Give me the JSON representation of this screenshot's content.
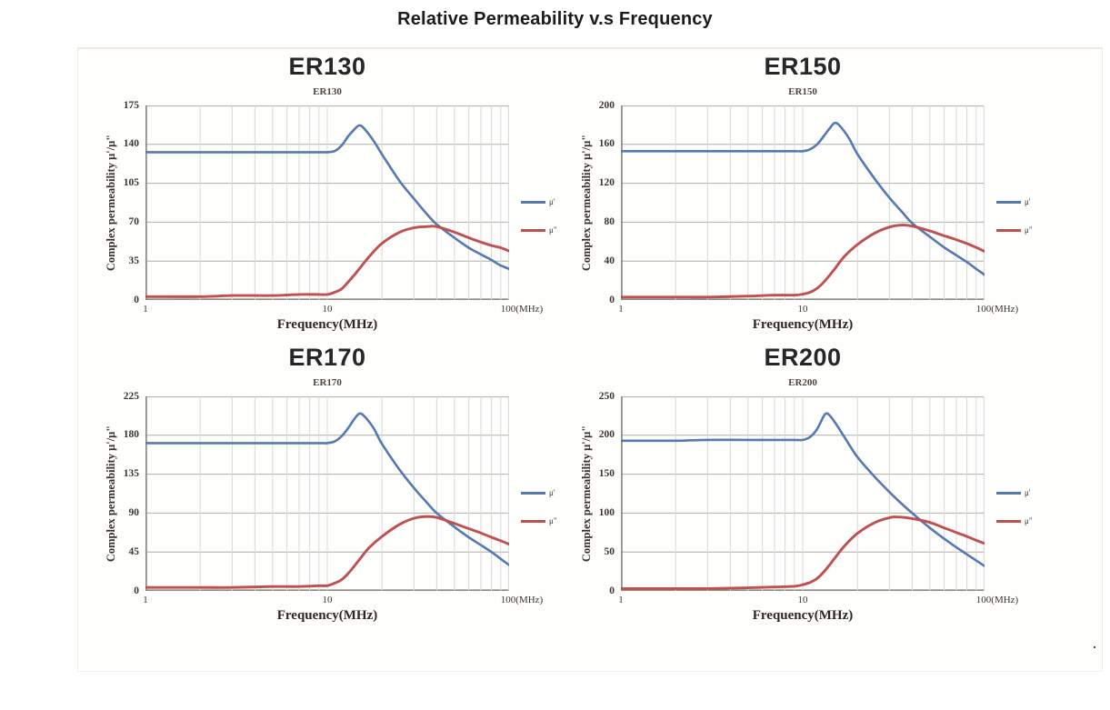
{
  "page": {
    "title": "Relative Permeability v.s Frequency",
    "trailing_mark": "."
  },
  "axis": {
    "xlabel": "Frequency(MHz)",
    "ylabel": "Complex permeability  μ'/μ\"",
    "xticks": [
      "1",
      "10",
      "100(MHz)"
    ],
    "xscale": "log",
    "xrange": [
      1,
      100
    ],
    "grid": true
  },
  "legend": {
    "position": "right",
    "mu_prime": "μ'",
    "mu_double_prime": "μ\""
  },
  "colors": {
    "mu_prime": "#5579b2",
    "mu_double_prime": "#c0504d",
    "grid_h": "#b4ada4",
    "grid_v": "#d9d9dd",
    "axis": "#8e8780"
  },
  "chart_data": [
    {
      "id": "ER130",
      "type": "line",
      "title": "ER130",
      "subtitle": "ER130",
      "xlabel": "Frequency(MHz)",
      "ylabel": "Complex permeability  μ'/μ\"",
      "ylim": [
        0,
        175
      ],
      "yticks": [
        0,
        35,
        70,
        105,
        140,
        175
      ],
      "series": [
        {
          "name": "μ'",
          "color_key": "mu_prime",
          "points": [
            [
              1,
              133
            ],
            [
              2,
              133
            ],
            [
              3,
              133
            ],
            [
              5,
              133
            ],
            [
              7,
              133
            ],
            [
              9,
              133
            ],
            [
              10,
              133
            ],
            [
              11,
              134
            ],
            [
              12,
              139
            ],
            [
              13,
              147
            ],
            [
              14,
              153
            ],
            [
              15,
              157
            ],
            [
              16,
              154
            ],
            [
              18,
              143
            ],
            [
              20,
              131
            ],
            [
              25,
              107
            ],
            [
              30,
              91
            ],
            [
              35,
              78
            ],
            [
              40,
              68
            ],
            [
              50,
              56
            ],
            [
              60,
              47
            ],
            [
              70,
              41
            ],
            [
              80,
              36
            ],
            [
              90,
              31
            ],
            [
              100,
              28
            ]
          ]
        },
        {
          "name": "μ\"",
          "color_key": "mu_double_prime",
          "points": [
            [
              1,
              3
            ],
            [
              2,
              3
            ],
            [
              3,
              4
            ],
            [
              5,
              4
            ],
            [
              7,
              5
            ],
            [
              9,
              5
            ],
            [
              10,
              5
            ],
            [
              11,
              7
            ],
            [
              12,
              10
            ],
            [
              13,
              16
            ],
            [
              14,
              22
            ],
            [
              15,
              28
            ],
            [
              17,
              39
            ],
            [
              20,
              51
            ],
            [
              25,
              61
            ],
            [
              30,
              65
            ],
            [
              35,
              66
            ],
            [
              40,
              66
            ],
            [
              50,
              61
            ],
            [
              60,
              56
            ],
            [
              70,
              52
            ],
            [
              80,
              49
            ],
            [
              90,
              47
            ],
            [
              100,
              44
            ]
          ]
        }
      ]
    },
    {
      "id": "ER150",
      "type": "line",
      "title": "ER150",
      "subtitle": "ER150",
      "xlabel": "Frequency(MHz)",
      "ylabel": "Complex permeability  μ'/μ\"",
      "ylim": [
        0,
        200
      ],
      "yticks": [
        0,
        40,
        80,
        120,
        160,
        200
      ],
      "series": [
        {
          "name": "μ'",
          "color_key": "mu_prime",
          "points": [
            [
              1,
              153
            ],
            [
              2,
              153
            ],
            [
              3,
              153
            ],
            [
              5,
              153
            ],
            [
              7,
              153
            ],
            [
              9,
              153
            ],
            [
              10,
              153
            ],
            [
              11,
              155
            ],
            [
              12,
              160
            ],
            [
              13,
              168
            ],
            [
              14,
              176
            ],
            [
              15,
              182
            ],
            [
              16,
              179
            ],
            [
              18,
              166
            ],
            [
              20,
              150
            ],
            [
              25,
              124
            ],
            [
              30,
              105
            ],
            [
              35,
              91
            ],
            [
              40,
              79
            ],
            [
              50,
              65
            ],
            [
              60,
              54
            ],
            [
              70,
              46
            ],
            [
              80,
              39
            ],
            [
              90,
              32
            ],
            [
              100,
              26
            ]
          ]
        },
        {
          "name": "μ\"",
          "color_key": "mu_double_prime",
          "points": [
            [
              1,
              3
            ],
            [
              2,
              3
            ],
            [
              3,
              3
            ],
            [
              5,
              4
            ],
            [
              7,
              5
            ],
            [
              9,
              5
            ],
            [
              10,
              6
            ],
            [
              11,
              8
            ],
            [
              12,
              12
            ],
            [
              13,
              18
            ],
            [
              14,
              25
            ],
            [
              15,
              32
            ],
            [
              17,
              45
            ],
            [
              20,
              57
            ],
            [
              25,
              69
            ],
            [
              30,
              75
            ],
            [
              35,
              77
            ],
            [
              40,
              76
            ],
            [
              50,
              71
            ],
            [
              60,
              66
            ],
            [
              70,
              62
            ],
            [
              80,
              58
            ],
            [
              90,
              54
            ],
            [
              100,
              50
            ]
          ]
        }
      ]
    },
    {
      "id": "ER170",
      "type": "line",
      "title": "ER170",
      "subtitle": "ER170",
      "xlabel": "Frequency(MHz)",
      "ylabel": "Complex permeability  μ'/μ\"",
      "ylim": [
        0,
        225
      ],
      "yticks": [
        0,
        45,
        90,
        135,
        180,
        225
      ],
      "series": [
        {
          "name": "μ'",
          "color_key": "mu_prime",
          "points": [
            [
              1,
              171
            ],
            [
              2,
              171
            ],
            [
              3,
              171
            ],
            [
              5,
              171
            ],
            [
              7,
              171
            ],
            [
              9,
              171
            ],
            [
              10,
              171
            ],
            [
              11,
              173
            ],
            [
              12,
              179
            ],
            [
              13,
              188
            ],
            [
              14,
              198
            ],
            [
              15,
              205
            ],
            [
              16,
              202
            ],
            [
              18,
              188
            ],
            [
              20,
              170
            ],
            [
              25,
              140
            ],
            [
              30,
              119
            ],
            [
              35,
              103
            ],
            [
              40,
              90
            ],
            [
              50,
              74
            ],
            [
              60,
              62
            ],
            [
              70,
              53
            ],
            [
              80,
              45
            ],
            [
              90,
              37
            ],
            [
              100,
              30
            ]
          ]
        },
        {
          "name": "μ\"",
          "color_key": "mu_double_prime",
          "points": [
            [
              1,
              4
            ],
            [
              2,
              4
            ],
            [
              3,
              4
            ],
            [
              5,
              5
            ],
            [
              7,
              5
            ],
            [
              9,
              6
            ],
            [
              10,
              6
            ],
            [
              11,
              9
            ],
            [
              12,
              13
            ],
            [
              13,
              20
            ],
            [
              14,
              28
            ],
            [
              15,
              36
            ],
            [
              17,
              50
            ],
            [
              20,
              63
            ],
            [
              25,
              77
            ],
            [
              30,
              84
            ],
            [
              35,
              86
            ],
            [
              40,
              85
            ],
            [
              50,
              78
            ],
            [
              60,
              72
            ],
            [
              70,
              67
            ],
            [
              80,
              62
            ],
            [
              90,
              58
            ],
            [
              100,
              54
            ]
          ]
        }
      ]
    },
    {
      "id": "ER200",
      "type": "line",
      "title": "ER200",
      "subtitle": "ER200",
      "xlabel": "Frequency(MHz)",
      "ylabel": "Complex permeability  μ'/μ\"",
      "ylim": [
        0,
        250
      ],
      "yticks": [
        0,
        50,
        100,
        150,
        200,
        250
      ],
      "series": [
        {
          "name": "μ'",
          "color_key": "mu_prime",
          "points": [
            [
              1,
              193
            ],
            [
              2,
              193
            ],
            [
              3,
              194
            ],
            [
              5,
              194
            ],
            [
              7,
              194
            ],
            [
              9,
              194
            ],
            [
              10,
              194
            ],
            [
              11,
              198
            ],
            [
              12,
              208
            ],
            [
              13,
              224
            ],
            [
              13.5,
              228
            ],
            [
              14,
              226
            ],
            [
              15,
              217
            ],
            [
              16,
              207
            ],
            [
              18,
              188
            ],
            [
              20,
              172
            ],
            [
              25,
              146
            ],
            [
              30,
              127
            ],
            [
              35,
              112
            ],
            [
              40,
              100
            ],
            [
              50,
              81
            ],
            [
              60,
              67
            ],
            [
              70,
              56
            ],
            [
              80,
              47
            ],
            [
              90,
              39
            ],
            [
              100,
              32
            ]
          ]
        },
        {
          "name": "μ\"",
          "color_key": "mu_double_prime",
          "points": [
            [
              1,
              3
            ],
            [
              2,
              3
            ],
            [
              3,
              3
            ],
            [
              5,
              4
            ],
            [
              7,
              5
            ],
            [
              9,
              6
            ],
            [
              10,
              8
            ],
            [
              11,
              11
            ],
            [
              12,
              16
            ],
            [
              13,
              24
            ],
            [
              14,
              33
            ],
            [
              15,
              42
            ],
            [
              17,
              58
            ],
            [
              20,
              74
            ],
            [
              25,
              88
            ],
            [
              30,
              94
            ],
            [
              33,
              95
            ],
            [
              40,
              93
            ],
            [
              50,
              88
            ],
            [
              60,
              81
            ],
            [
              70,
              75
            ],
            [
              80,
              70
            ],
            [
              90,
              65
            ],
            [
              100,
              61
            ]
          ]
        }
      ]
    }
  ]
}
